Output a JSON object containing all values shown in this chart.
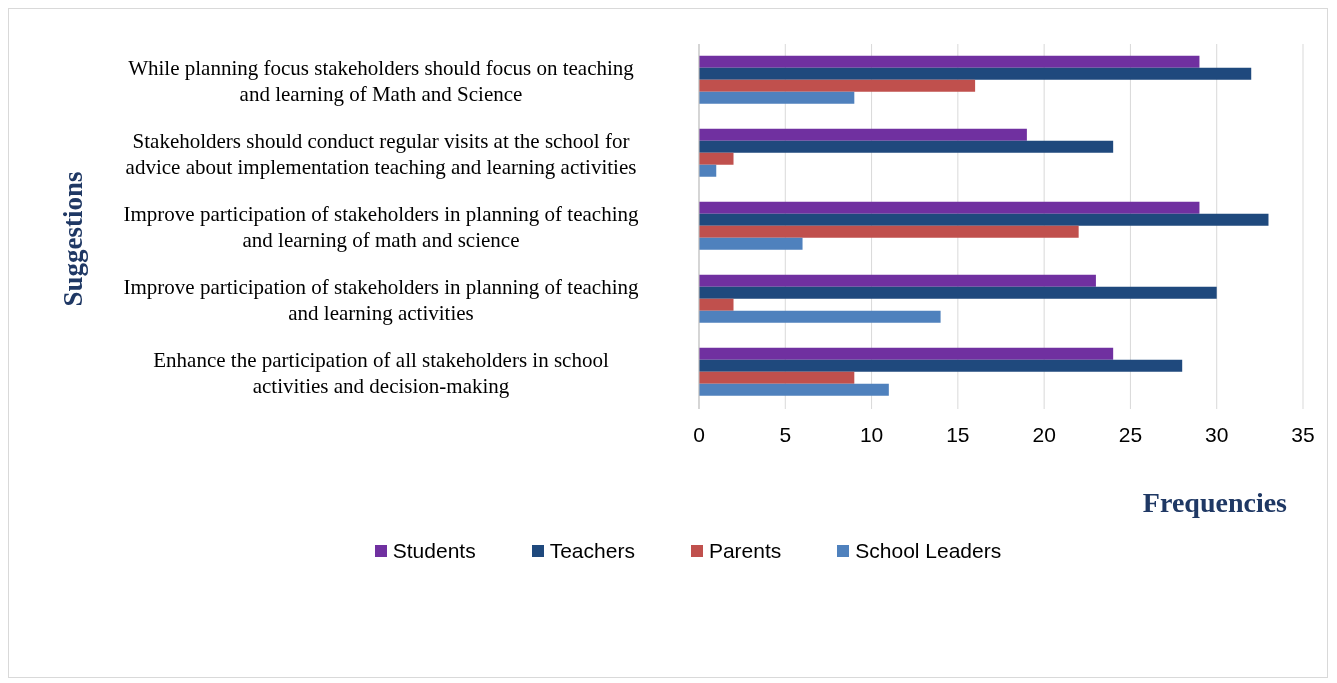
{
  "chart_data": {
    "type": "bar",
    "orientation": "horizontal",
    "xlabel": "Frequencies",
    "ylabel": "Suggestions",
    "categories": [
      "While planning focus stakeholders should focus on teaching and learning of Math and Science",
      "Stakeholders should conduct regular visits at the school for advice about implementation  teaching and learning activities",
      "Improve participation of stakeholders in planning of teaching and learning of math and science",
      "Improve participation of stakeholders in planning of teaching and learning activities",
      "Enhance the participation of all stakeholders in school activities and decision-making"
    ],
    "series": [
      {
        "name": "Students",
        "color": "#7030a0",
        "values": [
          29,
          19,
          29,
          23,
          24
        ]
      },
      {
        "name": "Teachers",
        "color": "#1f497d",
        "values": [
          32,
          24,
          33,
          30,
          28
        ]
      },
      {
        "name": "Parents",
        "color": "#c0504d",
        "values": [
          16,
          2,
          22,
          2,
          9
        ]
      },
      {
        "name": "School Leaders",
        "color": "#4f81bd",
        "values": [
          9,
          1,
          6,
          14,
          11
        ]
      }
    ],
    "xlim": [
      0,
      35
    ],
    "xticks": [
      0,
      5,
      10,
      15,
      20,
      25,
      30,
      35
    ],
    "grid": "x",
    "legend": "bottom"
  }
}
